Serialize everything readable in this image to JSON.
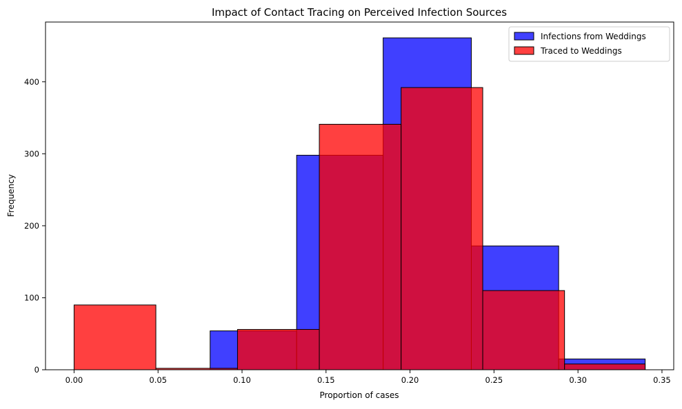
{
  "chart_data": {
    "type": "histogram",
    "title": "Impact of Contact Tracing on Perceived Infection Sources",
    "xlabel": "Proportion of cases",
    "ylabel": "Frequency",
    "xlim": [
      -0.017,
      0.357
    ],
    "ylim": [
      0,
      483
    ],
    "xticks": [
      0.0,
      0.05,
      0.1,
      0.15,
      0.2,
      0.25,
      0.3,
      0.35
    ],
    "xtick_labels": [
      "0.00",
      "0.05",
      "0.10",
      "0.15",
      "0.20",
      "0.25",
      "0.30",
      "0.35"
    ],
    "yticks": [
      0,
      100,
      200,
      300,
      400
    ],
    "ytick_labels": [
      "0",
      "100",
      "200",
      "300",
      "400"
    ],
    "grid": false,
    "legend_position": "top-right",
    "series": [
      {
        "name": "Infections from Weddings",
        "color": "#0000ff",
        "opacity": 0.75,
        "bins": [
          {
            "x0": 0.081,
            "x1": 0.1325,
            "count": 54
          },
          {
            "x0": 0.1325,
            "x1": 0.184,
            "count": 298
          },
          {
            "x0": 0.184,
            "x1": 0.2365,
            "count": 461
          },
          {
            "x0": 0.2365,
            "x1": 0.2885,
            "count": 172
          },
          {
            "x0": 0.2885,
            "x1": 0.34,
            "count": 15
          }
        ]
      },
      {
        "name": "Traced to Weddings",
        "color": "#ff0000",
        "opacity": 0.75,
        "bins": [
          {
            "x0": 0.0,
            "x1": 0.0487,
            "count": 90
          },
          {
            "x0": 0.0487,
            "x1": 0.0973,
            "count": 2
          },
          {
            "x0": 0.0973,
            "x1": 0.146,
            "count": 56
          },
          {
            "x0": 0.146,
            "x1": 0.1947,
            "count": 341
          },
          {
            "x0": 0.1947,
            "x1": 0.2433,
            "count": 392
          },
          {
            "x0": 0.2433,
            "x1": 0.292,
            "count": 110
          },
          {
            "x0": 0.292,
            "x1": 0.34,
            "count": 8
          }
        ]
      }
    ]
  }
}
